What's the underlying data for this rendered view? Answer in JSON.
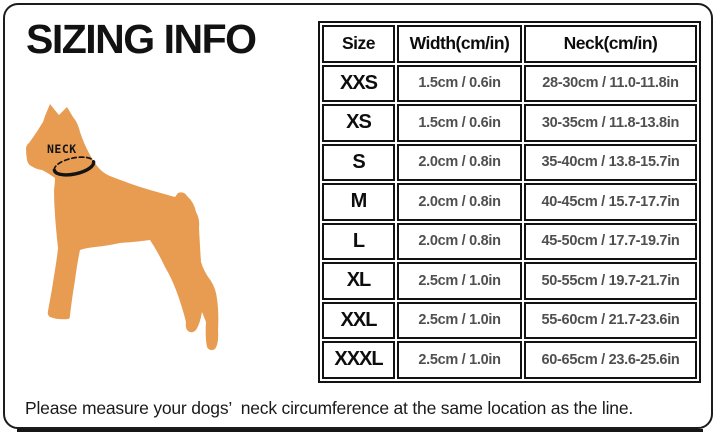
{
  "page": {
    "title": "SIZING INFO",
    "note": "Please measure your dogs’  neck circumference at the same location as the line.",
    "dog_color": "#e79c52",
    "border_color": "#1c1c1c",
    "value_text_color": "#4f4f4f"
  },
  "diagram": {
    "neck_label": "NECK"
  },
  "chart_data": {
    "type": "table",
    "title": "SIZING INFO",
    "columns": [
      "Size",
      "Width(cm/in)",
      "Neck(cm/in)"
    ],
    "rows": [
      [
        "XXS",
        "1.5cm / 0.6in",
        "28-30cm / 11.0-11.8in"
      ],
      [
        "XS",
        "1.5cm / 0.6in",
        "30-35cm / 11.8-13.8in"
      ],
      [
        "S",
        "2.0cm / 0.8in",
        "35-40cm / 13.8-15.7in"
      ],
      [
        "M",
        "2.0cm / 0.8in",
        "40-45cm / 15.7-17.7in"
      ],
      [
        "L",
        "2.0cm / 0.8in",
        "45-50cm / 17.7-19.7in"
      ],
      [
        "XL",
        "2.5cm / 1.0in",
        "50-55cm / 19.7-21.7in"
      ],
      [
        "XXL",
        "2.5cm / 1.0in",
        "55-60cm / 21.7-23.6in"
      ],
      [
        "XXXL",
        "2.5cm / 1.0in",
        "60-65cm / 23.6-25.6in"
      ]
    ]
  }
}
